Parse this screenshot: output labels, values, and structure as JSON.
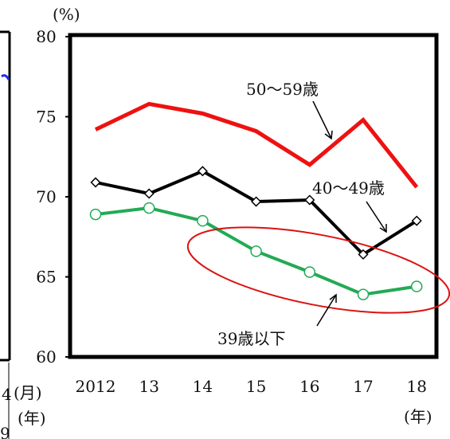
{
  "chart_data": {
    "type": "line",
    "ylabel": "(%)",
    "xlabel": "(年)",
    "ylim": [
      60,
      80
    ],
    "yticks": [
      60,
      65,
      70,
      75,
      80
    ],
    "categories": [
      "2012",
      "13",
      "14",
      "15",
      "16",
      "17",
      "18"
    ],
    "grid": false,
    "series": [
      {
        "name": "50〜59歳",
        "color": "#ee1111",
        "marker": "none",
        "values": [
          74.2,
          75.8,
          75.2,
          74.1,
          72.0,
          74.8,
          70.6
        ]
      },
      {
        "name": "40〜49歳",
        "color": "#000000",
        "marker": "diamond",
        "values": [
          70.9,
          70.2,
          71.6,
          69.7,
          69.8,
          66.4,
          68.5
        ]
      },
      {
        "name": "39歳以下",
        "color": "#22aa55",
        "marker": "circle",
        "values": [
          68.9,
          69.3,
          68.5,
          66.6,
          65.3,
          63.9,
          64.4
        ]
      }
    ]
  },
  "fragment": {
    "month_label": "(月)",
    "year_label": "(年)",
    "digit_top": "4",
    "digit_bottom": "9"
  },
  "annotation_ellipse_color": "#dd1111"
}
